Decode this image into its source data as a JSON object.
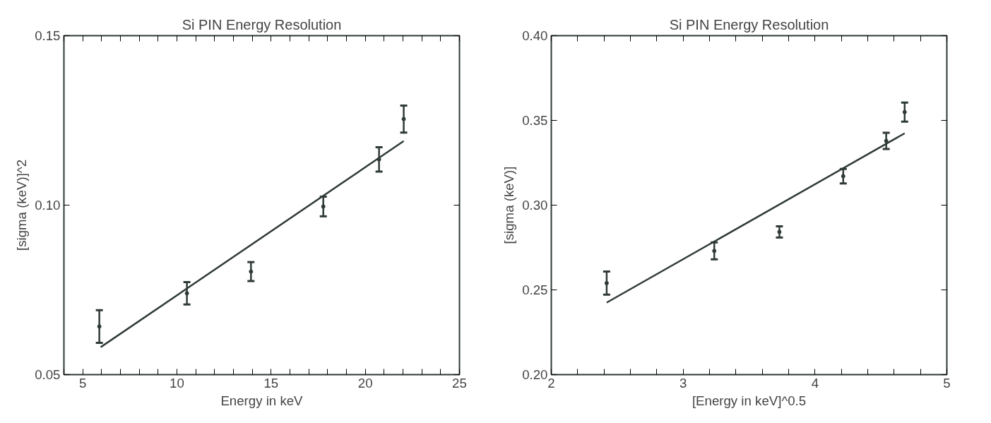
{
  "chart_data": [
    {
      "type": "scatter",
      "title": "Si PIN Energy Resolution",
      "xlabel": "Energy in keV",
      "ylabel": "[sigma (keV)]^2",
      "grid": false,
      "xlim": [
        4,
        25
      ],
      "ylim": [
        0.05,
        0.15
      ],
      "xticks": [
        {
          "value": 4,
          "label": null
        },
        5,
        {
          "value": 6,
          "label": null
        },
        {
          "value": 7,
          "label": null
        },
        {
          "value": 8,
          "label": null
        },
        {
          "value": 9,
          "label": null
        },
        10,
        {
          "value": 11,
          "label": null
        },
        {
          "value": 12,
          "label": null
        },
        {
          "value": 13,
          "label": null
        },
        {
          "value": 14,
          "label": null
        },
        15,
        {
          "value": 16,
          "label": null
        },
        {
          "value": 17,
          "label": null
        },
        {
          "value": 18,
          "label": null
        },
        {
          "value": 19,
          "label": null
        },
        20,
        {
          "value": 21,
          "label": null
        },
        {
          "value": 22,
          "label": null
        },
        {
          "value": 23,
          "label": null
        },
        {
          "value": 24,
          "label": null
        },
        25
      ],
      "yticks": [
        {
          "value": 0.05,
          "label": "0.05"
        },
        {
          "value": 0.1,
          "label": "0.10"
        },
        {
          "value": 0.15,
          "label": "0.15"
        }
      ],
      "series": [
        {
          "color": "#2f3a36",
          "x": [
            5.88,
            10.53,
            13.93,
            17.77,
            20.73,
            22.04
          ],
          "values": [
            0.0642,
            0.074,
            0.0804,
            0.0996,
            0.1135,
            0.1254
          ],
          "errors": [
            0.0048,
            0.0033,
            0.0028,
            0.0029,
            0.0036,
            0.004
          ]
        },
        {
          "type": "line",
          "color": "#2f3a36",
          "x": [
            5.95,
            22.04
          ],
          "values": [
            0.0581,
            0.1189
          ]
        }
      ]
    },
    {
      "type": "scatter",
      "title": "Si PIN Energy Resolution",
      "xlabel": "[Energy in keV]^0.5",
      "ylabel": "[sigma (keV)]",
      "grid": false,
      "xlim": [
        2,
        5
      ],
      "ylim": [
        0.2,
        0.4
      ],
      "xticks": [
        2,
        {
          "value": 2.2,
          "label": null
        },
        {
          "value": 2.4,
          "label": null
        },
        {
          "value": 2.6,
          "label": null
        },
        {
          "value": 2.8,
          "label": null
        },
        3,
        {
          "value": 3.2,
          "label": null
        },
        {
          "value": 3.4,
          "label": null
        },
        {
          "value": 3.6,
          "label": null
        },
        {
          "value": 3.8,
          "label": null
        },
        4,
        {
          "value": 4.2,
          "label": null
        },
        {
          "value": 4.4,
          "label": null
        },
        {
          "value": 4.6,
          "label": null
        },
        {
          "value": 4.8,
          "label": null
        },
        5
      ],
      "yticks": [
        {
          "value": 0.2,
          "label": "0.20"
        },
        {
          "value": 0.25,
          "label": "0.25"
        },
        {
          "value": 0.3,
          "label": "0.30"
        },
        {
          "value": 0.35,
          "label": "0.35"
        },
        {
          "value": 0.4,
          "label": "0.40"
        }
      ],
      "series": [
        {
          "color": "#2f3a36",
          "x": [
            2.42,
            3.236,
            3.73,
            4.214,
            4.54,
            4.68
          ],
          "values": [
            0.254,
            0.273,
            0.2842,
            0.3171,
            0.3379,
            0.3549
          ],
          "errors": [
            0.0068,
            0.005,
            0.0033,
            0.0043,
            0.0048,
            0.0056
          ]
        },
        {
          "type": "line",
          "color": "#2f3a36",
          "x": [
            2.42,
            4.68
          ],
          "values": [
            0.2425,
            0.3424
          ]
        }
      ]
    }
  ]
}
